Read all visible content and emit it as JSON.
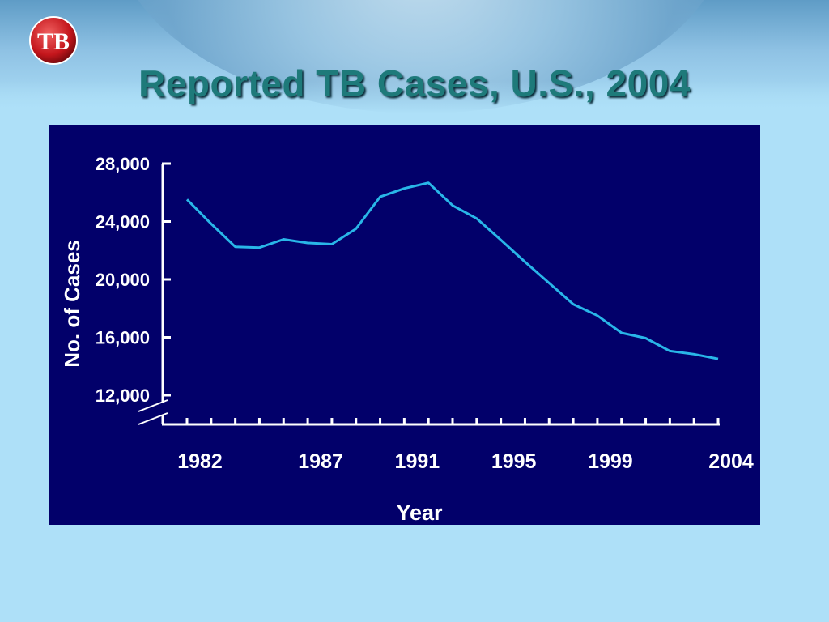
{
  "slide": {
    "title": "Reported TB Cases, U.S., 2004",
    "logo_text": "TB"
  },
  "colors": {
    "background": "#aee0f8",
    "chart_background": "#02006a",
    "line": "#29b6e8",
    "title": "#1e7a7a"
  },
  "chart_data": {
    "type": "line",
    "title": "",
    "xlabel": "Year",
    "ylabel": "No. of Cases",
    "x": [
      1982,
      1983,
      1984,
      1985,
      1986,
      1987,
      1988,
      1989,
      1990,
      1991,
      1992,
      1993,
      1994,
      1995,
      1996,
      1997,
      1998,
      1999,
      2000,
      2001,
      2002,
      2003,
      2004
    ],
    "x_tick_labels": [
      "1982",
      "1987",
      "1991",
      "1995",
      "1999",
      "2004"
    ],
    "y_ticks": [
      12000,
      16000,
      20000,
      24000,
      28000
    ],
    "y_tick_labels": [
      "12,000",
      "16,000",
      "20,000",
      "24,000",
      "28,000"
    ],
    "ylim": [
      12000,
      28000
    ],
    "axis_break": true,
    "grid": false,
    "legend": "none",
    "series": [
      {
        "values": [
          25520,
          23846,
          22255,
          22201,
          22768,
          22517,
          22436,
          23495,
          25701,
          26283,
          26673,
          25107,
          24205,
          22727,
          21210,
          19751,
          18287,
          17500,
          16309,
          15945,
          15055,
          14835,
          14511
        ]
      }
    ]
  }
}
